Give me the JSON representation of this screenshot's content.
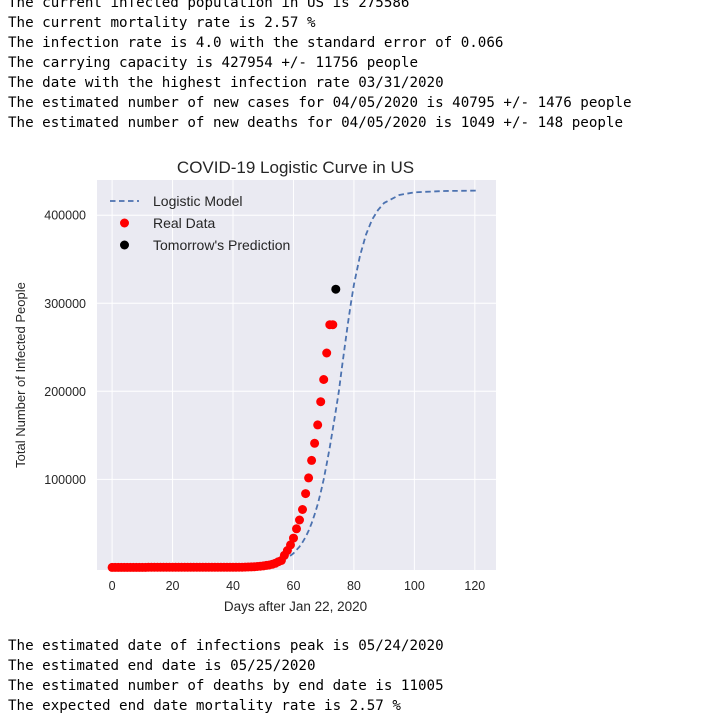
{
  "output_top": [
    "The current infected population in US is 275586",
    "The current mortality rate is 2.57 %",
    "The infection rate is 4.0 with the standard error of 0.066",
    "The carrying capacity is 427954 +/- 11756 people",
    "The date with the highest infection rate 03/31/2020",
    "The estimated number of new cases for 04/05/2020 is 40795 +/- 1476 people",
    "The estimated number of new deaths for 04/05/2020 is 1049 +/- 148 people"
  ],
  "output_bottom": [
    "The estimated date of infections peak is 05/24/2020",
    "The estimated end date is 05/25/2020",
    "The estimated number of deaths by end date is 11005",
    "The expected end date mortality rate is 2.57 %"
  ],
  "chart_data": {
    "type": "line",
    "title": "COVID-19 Logistic Curve in US",
    "xlabel": "Days after Jan 22, 2020",
    "ylabel": "Total Number of Infected People",
    "xlim": [
      -5,
      127
    ],
    "ylim": [
      -3000,
      440000
    ],
    "xticks": [
      0,
      20,
      40,
      60,
      80,
      100,
      120
    ],
    "yticks": [
      100000,
      200000,
      300000,
      400000
    ],
    "grid": true,
    "legend_position": "top-left",
    "colors": {
      "model": "#4c72b0",
      "real": "#ff0000",
      "prediction": "#000000",
      "plot_bg": "#eaeaf2",
      "grid": "#ffffff"
    },
    "series": [
      {
        "name": "Logistic Model",
        "style": "dashed-line",
        "x": [
          0,
          40,
          45,
          50,
          52,
          54,
          56,
          58,
          60,
          62,
          63,
          64,
          65,
          66,
          67,
          68,
          69,
          70,
          71,
          72,
          73,
          74,
          75,
          76,
          77,
          78,
          79,
          80,
          82,
          84,
          86,
          88,
          90,
          95,
          100,
          110,
          121
        ],
        "y": [
          0,
          300,
          900,
          2200,
          3300,
          4900,
          7300,
          10800,
          16000,
          23500,
          28500,
          34500,
          41500,
          50000,
          60000,
          71500,
          85000,
          100000,
          117500,
          136500,
          157000,
          178000,
          199500,
          226000,
          252000,
          277000,
          300000,
          321000,
          354000,
          378000,
          395000,
          406000,
          414000,
          423000,
          426000,
          427500,
          427954
        ]
      },
      {
        "name": "Real Data",
        "style": "points",
        "x": [
          0,
          1,
          2,
          3,
          4,
          5,
          6,
          7,
          8,
          9,
          10,
          11,
          12,
          13,
          14,
          15,
          16,
          17,
          18,
          19,
          20,
          21,
          22,
          23,
          24,
          25,
          26,
          27,
          28,
          29,
          30,
          31,
          32,
          33,
          34,
          35,
          36,
          37,
          38,
          39,
          40,
          41,
          42,
          43,
          44,
          45,
          46,
          47,
          48,
          49,
          50,
          51,
          52,
          53,
          54,
          55,
          56,
          57,
          58,
          59,
          60,
          61,
          62,
          63,
          64,
          65,
          66,
          67,
          68,
          69,
          70,
          71,
          72,
          73
        ],
        "y": [
          1,
          1,
          2,
          2,
          5,
          5,
          5,
          5,
          5,
          7,
          8,
          8,
          11,
          11,
          11,
          11,
          11,
          11,
          11,
          11,
          12,
          12,
          13,
          13,
          13,
          13,
          13,
          13,
          13,
          13,
          15,
          15,
          15,
          51,
          51,
          57,
          58,
          60,
          68,
          74,
          98,
          118,
          149,
          217,
          262,
          402,
          518,
          583,
          959,
          1281,
          1663,
          2179,
          2727,
          3499,
          4632,
          6421,
          7783,
          13677,
          19100,
          25489,
          33276,
          43847,
          53740,
          65778,
          83836,
          101657,
          121478,
          140886,
          161807,
          188172,
          213372,
          243453,
          275586,
          275586
        ]
      },
      {
        "name": "Tomorrow's Prediction",
        "style": "points",
        "x": [
          74
        ],
        "y": [
          316000
        ]
      }
    ]
  }
}
